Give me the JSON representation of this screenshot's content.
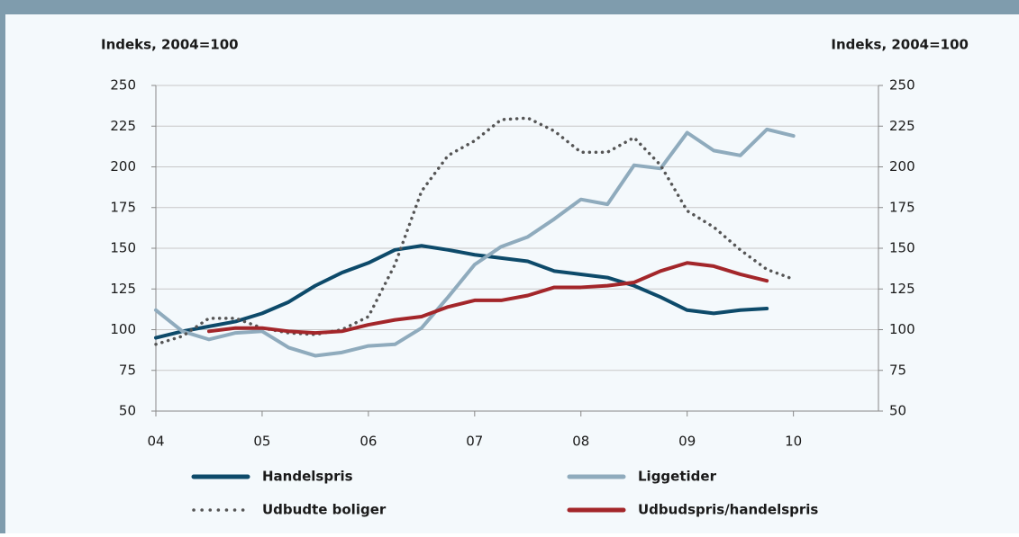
{
  "chart_data": {
    "type": "line",
    "y_label": "Indeks, 2004=100",
    "y2_label": "Indeks, 2004=100",
    "xlim": [
      2004,
      2010.8
    ],
    "xticks": [
      {
        "value": 2004,
        "label": "04"
      },
      {
        "value": 2005,
        "label": "05"
      },
      {
        "value": 2006,
        "label": "06"
      },
      {
        "value": 2007,
        "label": "07"
      },
      {
        "value": 2008,
        "label": "08"
      },
      {
        "value": 2009,
        "label": "09"
      },
      {
        "value": 2010,
        "label": "10"
      }
    ],
    "ylim": [
      50,
      250
    ],
    "yticks": [
      50,
      75,
      100,
      125,
      150,
      175,
      200,
      225,
      250
    ],
    "y2lim": [
      50,
      250
    ],
    "y2ticks": [
      50,
      75,
      100,
      125,
      150,
      175,
      200,
      225,
      250
    ],
    "grid": true,
    "series": [
      {
        "name": "Handelspris",
        "color": "#0d4a6a",
        "style": "solid",
        "x": [
          2004,
          2004.25,
          2004.5,
          2004.75,
          2005,
          2005.25,
          2005.5,
          2005.75,
          2006,
          2006.25,
          2006.5,
          2006.75,
          2007,
          2007.25,
          2007.5,
          2007.75,
          2008,
          2008.25,
          2008.5,
          2008.75,
          2009,
          2009.25,
          2009.5,
          2009.75
        ],
        "values": [
          95,
          99,
          102,
          105,
          110,
          117,
          127,
          135,
          141,
          149,
          151.5,
          149,
          146,
          144,
          142,
          136,
          134,
          132,
          127,
          120,
          112,
          110,
          112,
          113
        ]
      },
      {
        "name": "Liggetider",
        "color": "#8fabbd",
        "style": "solid",
        "x": [
          2004,
          2004.25,
          2004.5,
          2004.75,
          2005,
          2005.25,
          2005.5,
          2005.75,
          2006,
          2006.25,
          2006.5,
          2006.75,
          2007,
          2007.25,
          2007.5,
          2007.75,
          2008,
          2008.25,
          2008.5,
          2008.75,
          2009,
          2009.25,
          2009.5,
          2009.75,
          2010
        ],
        "values": [
          112,
          99,
          94,
          98,
          99,
          89,
          84,
          86,
          90,
          91,
          101,
          120,
          140,
          151,
          157,
          168,
          180,
          177,
          201,
          199,
          221,
          210,
          207,
          223,
          219
        ]
      },
      {
        "name": "Udbudte boliger",
        "color": "#555555",
        "style": "dotted",
        "x": [
          2004,
          2004.25,
          2004.5,
          2004.75,
          2005,
          2005.25,
          2005.5,
          2005.75,
          2006,
          2006.25,
          2006.5,
          2006.75,
          2007,
          2007.25,
          2007.5,
          2007.75,
          2008,
          2008.25,
          2008.5,
          2008.75,
          2009,
          2009.25,
          2009.5,
          2009.75,
          2010
        ],
        "values": [
          91,
          96,
          107,
          107,
          101,
          98,
          97,
          100,
          108,
          140,
          185,
          207,
          216,
          229,
          230,
          222,
          209,
          209,
          218,
          201,
          173,
          163,
          149,
          137,
          131
        ]
      },
      {
        "name": "Udbudspris/handelspris",
        "color": "#a3262a",
        "style": "solid",
        "x": [
          2004.5,
          2004.75,
          2005,
          2005.25,
          2005.5,
          2005.75,
          2006,
          2006.25,
          2006.5,
          2006.75,
          2007,
          2007.25,
          2007.5,
          2007.75,
          2008,
          2008.25,
          2008.5,
          2008.75,
          2009,
          2009.25,
          2009.5,
          2009.75
        ],
        "values": [
          99,
          101,
          101,
          99,
          98,
          99,
          103,
          106,
          108,
          114,
          118,
          118,
          121,
          126,
          126,
          127,
          129,
          136,
          141,
          139,
          134,
          130
        ]
      }
    ]
  }
}
